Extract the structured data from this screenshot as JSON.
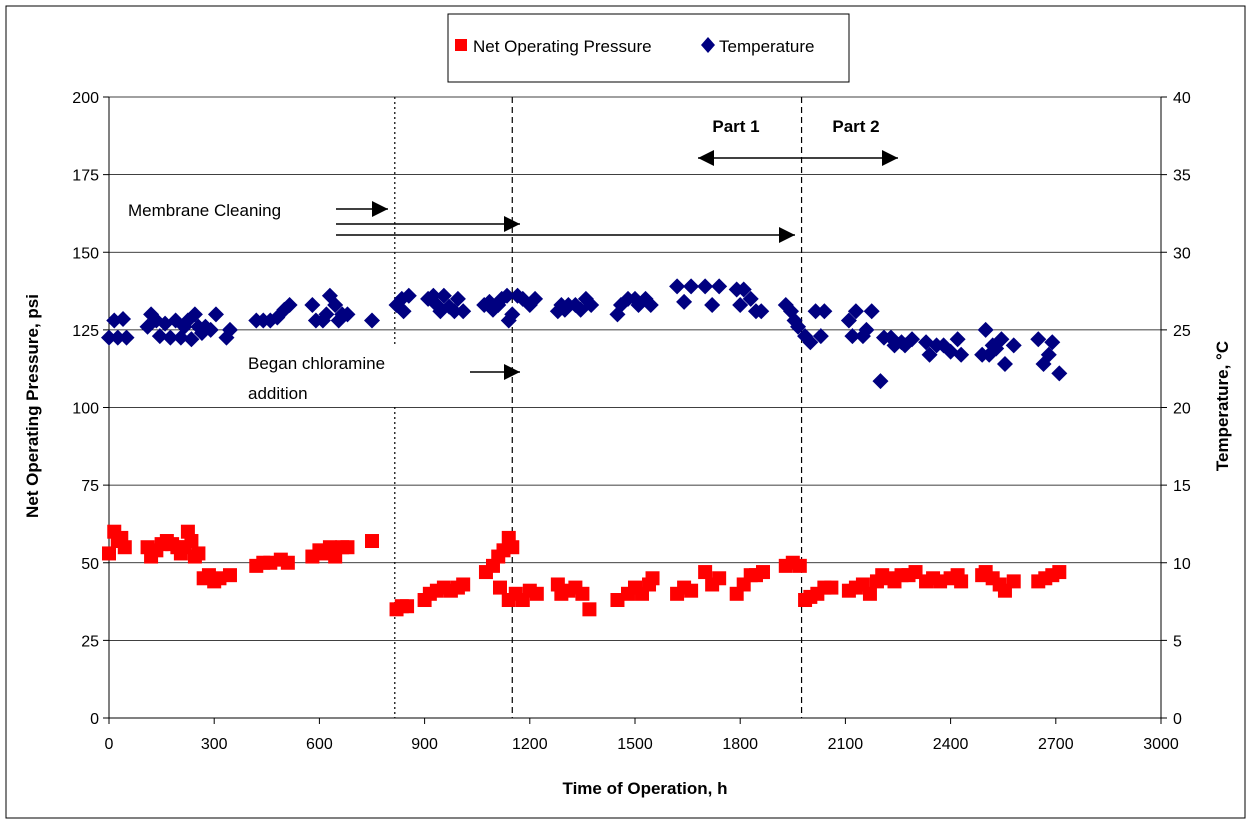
{
  "chart_data": {
    "type": "scatter",
    "xlabel": "Time of Operation, h",
    "ylabel_left": "Net Operating Pressure, psi",
    "ylabel_right": "Temperature, °C",
    "x_range": [
      0,
      3000
    ],
    "x_ticks": [
      0,
      300,
      600,
      900,
      1200,
      1500,
      1800,
      2100,
      2400,
      2700,
      3000
    ],
    "y_left_range": [
      0,
      200
    ],
    "y_left_ticks": [
      0,
      25,
      50,
      75,
      100,
      125,
      150,
      175,
      200
    ],
    "y_right_range": [
      0,
      40
    ],
    "y_right_ticks": [
      0,
      5,
      10,
      15,
      20,
      25,
      30,
      35,
      40
    ],
    "grid": "horizontal",
    "legend_position": "top-center",
    "colors": {
      "pressure": "#ff0000",
      "temperature": "#000080"
    },
    "legend": {
      "pressure_label": "Net Operating Pressure",
      "temperature_label": "Temperature"
    },
    "vertical_lines": [
      {
        "x": 815,
        "style": "dotted"
      },
      {
        "x": 1150,
        "style": "dashed"
      },
      {
        "x": 1975,
        "style": "dashed"
      }
    ],
    "annotations": {
      "membrane_cleaning": "Membrane Cleaning",
      "chloramine_line1": "Began chloramine",
      "chloramine_line2": "addition",
      "part1": "Part 1",
      "part2": "Part 2"
    },
    "series": [
      {
        "name": "Net Operating Pressure",
        "axis": "left",
        "marker": "square",
        "points": [
          [
            0,
            53
          ],
          [
            15,
            60
          ],
          [
            25,
            57
          ],
          [
            35,
            58
          ],
          [
            45,
            55
          ],
          [
            110,
            55
          ],
          [
            120,
            52
          ],
          [
            135,
            54
          ],
          [
            150,
            56
          ],
          [
            165,
            57
          ],
          [
            180,
            56
          ],
          [
            195,
            55
          ],
          [
            205,
            53
          ],
          [
            215,
            55
          ],
          [
            225,
            60
          ],
          [
            235,
            57
          ],
          [
            245,
            52
          ],
          [
            255,
            53
          ],
          [
            270,
            45
          ],
          [
            285,
            46
          ],
          [
            300,
            44
          ],
          [
            315,
            45
          ],
          [
            345,
            46
          ],
          [
            420,
            49
          ],
          [
            440,
            50
          ],
          [
            460,
            50
          ],
          [
            490,
            51
          ],
          [
            510,
            50
          ],
          [
            580,
            52
          ],
          [
            600,
            54
          ],
          [
            615,
            53
          ],
          [
            630,
            55
          ],
          [
            645,
            52
          ],
          [
            665,
            55
          ],
          [
            680,
            55
          ],
          [
            750,
            57
          ],
          [
            820,
            35
          ],
          [
            835,
            36
          ],
          [
            850,
            36
          ],
          [
            900,
            38
          ],
          [
            915,
            40
          ],
          [
            935,
            41
          ],
          [
            955,
            42
          ],
          [
            975,
            41
          ],
          [
            995,
            42
          ],
          [
            1010,
            43
          ],
          [
            1075,
            47
          ],
          [
            1095,
            49
          ],
          [
            1110,
            52
          ],
          [
            1125,
            54
          ],
          [
            1140,
            58
          ],
          [
            1150,
            55
          ],
          [
            1115,
            42
          ],
          [
            1140,
            38
          ],
          [
            1160,
            40
          ],
          [
            1180,
            38
          ],
          [
            1200,
            41
          ],
          [
            1220,
            40
          ],
          [
            1280,
            43
          ],
          [
            1290,
            40
          ],
          [
            1310,
            41
          ],
          [
            1330,
            42
          ],
          [
            1350,
            40
          ],
          [
            1370,
            35
          ],
          [
            1450,
            38
          ],
          [
            1480,
            40
          ],
          [
            1500,
            42
          ],
          [
            1520,
            40
          ],
          [
            1540,
            43
          ],
          [
            1550,
            45
          ],
          [
            1620,
            40
          ],
          [
            1640,
            42
          ],
          [
            1660,
            41
          ],
          [
            1700,
            47
          ],
          [
            1720,
            43
          ],
          [
            1740,
            45
          ],
          [
            1790,
            40
          ],
          [
            1810,
            43
          ],
          [
            1830,
            46
          ],
          [
            1845,
            46
          ],
          [
            1865,
            47
          ],
          [
            1930,
            49
          ],
          [
            1950,
            50
          ],
          [
            1970,
            49
          ],
          [
            1985,
            38
          ],
          [
            2000,
            39
          ],
          [
            2020,
            40
          ],
          [
            2040,
            42
          ],
          [
            2060,
            42
          ],
          [
            2110,
            41
          ],
          [
            2130,
            42
          ],
          [
            2150,
            43
          ],
          [
            2170,
            40
          ],
          [
            2190,
            44
          ],
          [
            2205,
            46
          ],
          [
            2225,
            45
          ],
          [
            2240,
            44
          ],
          [
            2260,
            46
          ],
          [
            2280,
            46
          ],
          [
            2300,
            47
          ],
          [
            2330,
            44
          ],
          [
            2350,
            45
          ],
          [
            2370,
            44
          ],
          [
            2400,
            45
          ],
          [
            2420,
            46
          ],
          [
            2430,
            44
          ],
          [
            2490,
            46
          ],
          [
            2500,
            47
          ],
          [
            2520,
            45
          ],
          [
            2540,
            43
          ],
          [
            2555,
            41
          ],
          [
            2580,
            44
          ],
          [
            2650,
            44
          ],
          [
            2670,
            45
          ],
          [
            2690,
            46
          ],
          [
            2710,
            47
          ]
        ]
      },
      {
        "name": "Temperature",
        "axis": "right",
        "marker": "diamond",
        "points": [
          [
            0,
            24.5
          ],
          [
            15,
            25.6
          ],
          [
            25,
            24.5
          ],
          [
            40,
            25.7
          ],
          [
            50,
            24.5
          ],
          [
            110,
            25.2
          ],
          [
            120,
            26
          ],
          [
            135,
            25.6
          ],
          [
            145,
            24.6
          ],
          [
            160,
            25.4
          ],
          [
            175,
            24.5
          ],
          [
            190,
            25.6
          ],
          [
            205,
            24.5
          ],
          [
            215,
            25.2
          ],
          [
            225,
            25.6
          ],
          [
            235,
            24.4
          ],
          [
            245,
            26
          ],
          [
            255,
            25.2
          ],
          [
            265,
            24.8
          ],
          [
            275,
            25.2
          ],
          [
            290,
            25
          ],
          [
            305,
            26
          ],
          [
            335,
            24.5
          ],
          [
            345,
            25
          ],
          [
            420,
            25.6
          ],
          [
            440,
            25.6
          ],
          [
            460,
            25.6
          ],
          [
            480,
            25.8
          ],
          [
            500,
            26.3
          ],
          [
            515,
            26.6
          ],
          [
            580,
            26.6
          ],
          [
            590,
            25.6
          ],
          [
            610,
            25.6
          ],
          [
            620,
            26
          ],
          [
            630,
            27.2
          ],
          [
            645,
            26.6
          ],
          [
            655,
            25.6
          ],
          [
            665,
            26
          ],
          [
            680,
            26
          ],
          [
            750,
            25.6
          ],
          [
            820,
            26.6
          ],
          [
            835,
            27
          ],
          [
            840,
            26.2
          ],
          [
            855,
            27.2
          ],
          [
            910,
            27
          ],
          [
            925,
            27.2
          ],
          [
            935,
            26.6
          ],
          [
            945,
            26.2
          ],
          [
            955,
            27.2
          ],
          [
            970,
            26.5
          ],
          [
            985,
            26.2
          ],
          [
            995,
            27
          ],
          [
            1010,
            26.2
          ],
          [
            1070,
            26.6
          ],
          [
            1085,
            26.8
          ],
          [
            1095,
            26.3
          ],
          [
            1110,
            26.6
          ],
          [
            1120,
            27
          ],
          [
            1135,
            27.2
          ],
          [
            1140,
            25.6
          ],
          [
            1150,
            26
          ],
          [
            1165,
            27.2
          ],
          [
            1180,
            27
          ],
          [
            1200,
            26.6
          ],
          [
            1215,
            27
          ],
          [
            1280,
            26.2
          ],
          [
            1290,
            26.6
          ],
          [
            1300,
            26.3
          ],
          [
            1310,
            26.6
          ],
          [
            1330,
            26.6
          ],
          [
            1345,
            26.3
          ],
          [
            1360,
            27
          ],
          [
            1375,
            26.6
          ],
          [
            1450,
            26
          ],
          [
            1460,
            26.6
          ],
          [
            1480,
            27
          ],
          [
            1500,
            27
          ],
          [
            1510,
            26.6
          ],
          [
            1530,
            27
          ],
          [
            1545,
            26.6
          ],
          [
            1620,
            27.8
          ],
          [
            1640,
            26.8
          ],
          [
            1660,
            27.8
          ],
          [
            1700,
            27.8
          ],
          [
            1720,
            26.6
          ],
          [
            1740,
            27.8
          ],
          [
            1790,
            27.6
          ],
          [
            1800,
            26.6
          ],
          [
            1810,
            27.6
          ],
          [
            1830,
            27
          ],
          [
            1845,
            26.2
          ],
          [
            1860,
            26.2
          ],
          [
            1930,
            26.6
          ],
          [
            1945,
            26.2
          ],
          [
            1955,
            25.6
          ],
          [
            1965,
            25.2
          ],
          [
            1985,
            24.6
          ],
          [
            2000,
            24.2
          ],
          [
            2015,
            26.2
          ],
          [
            2030,
            24.6
          ],
          [
            2040,
            26.2
          ],
          [
            2110,
            25.6
          ],
          [
            2120,
            24.6
          ],
          [
            2130,
            26.2
          ],
          [
            2150,
            24.6
          ],
          [
            2160,
            25
          ],
          [
            2175,
            26.2
          ],
          [
            2200,
            21.7
          ],
          [
            2210,
            24.5
          ],
          [
            2230,
            24.5
          ],
          [
            2240,
            24
          ],
          [
            2260,
            24.2
          ],
          [
            2270,
            24
          ],
          [
            2290,
            24.4
          ],
          [
            2330,
            24.2
          ],
          [
            2340,
            23.4
          ],
          [
            2360,
            24
          ],
          [
            2380,
            24
          ],
          [
            2400,
            23.6
          ],
          [
            2420,
            24.4
          ],
          [
            2430,
            23.4
          ],
          [
            2490,
            23.4
          ],
          [
            2500,
            25
          ],
          [
            2510,
            23.4
          ],
          [
            2520,
            24
          ],
          [
            2530,
            23.8
          ],
          [
            2545,
            24.4
          ],
          [
            2555,
            22.8
          ],
          [
            2580,
            24
          ],
          [
            2650,
            24.4
          ],
          [
            2665,
            22.8
          ],
          [
            2680,
            23.4
          ],
          [
            2690,
            24.2
          ],
          [
            2710,
            22.2
          ]
        ]
      }
    ]
  }
}
